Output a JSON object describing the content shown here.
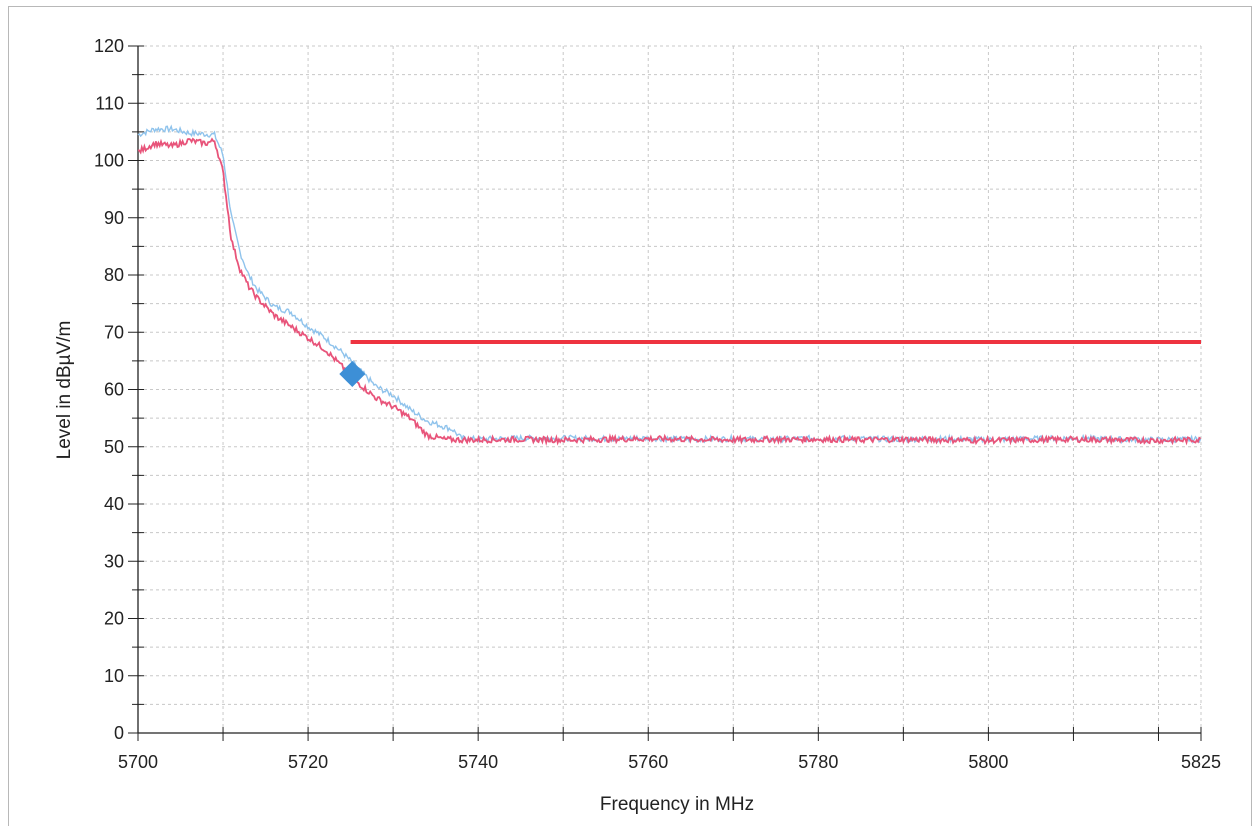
{
  "chart_data": {
    "type": "line",
    "xlabel": "Frequency in MHz",
    "ylabel": "Level in dBµV/m",
    "xlim": [
      5700,
      5825
    ],
    "ylim": [
      0,
      120
    ],
    "x_ticks": [
      "5700",
      "5720",
      "5740",
      "5760",
      "5780",
      "5800",
      "5825"
    ],
    "x_tick_values": [
      5700,
      5720,
      5740,
      5760,
      5780,
      5800,
      5825
    ],
    "y_ticks": [
      "0",
      "10",
      "20",
      "30",
      "40",
      "50",
      "60",
      "70",
      "80",
      "90",
      "100",
      "110",
      "120"
    ],
    "y_tick_values": [
      0,
      10,
      20,
      30,
      40,
      50,
      60,
      70,
      80,
      90,
      100,
      110,
      120
    ],
    "grid": true,
    "series": [
      {
        "color": "#8fc3ec",
        "x": [
          5700,
          5702,
          5704,
          5706,
          5708,
          5709,
          5710,
          5711,
          5712,
          5713,
          5714,
          5716,
          5718,
          5720,
          5722,
          5724,
          5726,
          5728,
          5730,
          5732,
          5734,
          5736,
          5737,
          5738,
          5740,
          5745,
          5750,
          5755,
          5760,
          5765,
          5770,
          5775,
          5780,
          5785,
          5790,
          5795,
          5800,
          5805,
          5810,
          5815,
          5820,
          5825
        ],
        "y": [
          104.5,
          105.5,
          105.5,
          104.8,
          104.6,
          104.5,
          101,
          90,
          84,
          80,
          77.5,
          74.5,
          73.5,
          71,
          69,
          66.5,
          63.5,
          60.5,
          59,
          56.5,
          54.5,
          53.5,
          53,
          51.5,
          51.3,
          51.5,
          51.5,
          51.4,
          51.5,
          51.3,
          51.4,
          51.3,
          51.5,
          51.4,
          51.3,
          51.4,
          51.2,
          51.4,
          51.5,
          51.3,
          51.2,
          51.3
        ]
      },
      {
        "color": "#e8547a",
        "x": [
          5700,
          5702,
          5704,
          5706,
          5708,
          5709,
          5710,
          5711,
          5712,
          5713,
          5714,
          5716,
          5718,
          5720,
          5722,
          5724,
          5726,
          5728,
          5730,
          5732,
          5734,
          5736,
          5738,
          5740,
          5745,
          5750,
          5755,
          5760,
          5765,
          5770,
          5775,
          5780,
          5785,
          5790,
          5795,
          5800,
          5805,
          5810,
          5815,
          5820,
          5825
        ],
        "y": [
          101.5,
          103,
          102.5,
          103.5,
          103,
          103.5,
          98,
          86,
          81,
          78,
          76,
          73,
          71,
          69,
          67,
          64,
          61,
          58.5,
          57,
          55,
          52,
          51.3,
          51.2,
          51.2,
          51.3,
          51.2,
          51.3,
          51.4,
          51.3,
          51.2,
          51.3,
          51.3,
          51.2,
          51.3,
          51.2,
          51.1,
          51.2,
          51.3,
          51.2,
          51.1,
          51.2
        ]
      }
    ],
    "limit_line": {
      "color": "#ee3340",
      "x": [
        5725,
        5825
      ],
      "y": 68.3
    },
    "markers": [
      {
        "x": 5725.2,
        "y": 62.7,
        "color": "#3d8fd6",
        "shape": "diamond"
      }
    ]
  }
}
